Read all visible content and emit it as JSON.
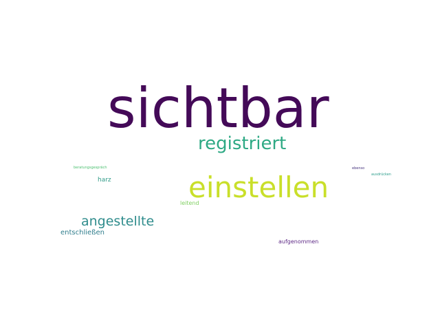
{
  "words": [
    {
      "text": "sichtbar",
      "color": "#440a58"
    },
    {
      "text": "registriert",
      "color": "#2ea984"
    },
    {
      "text": "einstellen",
      "color": "#c9df2a"
    },
    {
      "text": "angestellte",
      "color": "#2f8c8c"
    },
    {
      "text": "entschließen",
      "color": "#2f7d8c"
    },
    {
      "text": "harz",
      "color": "#2f9b88"
    },
    {
      "text": "leitend",
      "color": "#7fcf60"
    },
    {
      "text": "aufgenommen",
      "color": "#5e2a86"
    },
    {
      "text": "beratungsgespräch",
      "color": "#4cc070"
    },
    {
      "text": "ebenso",
      "color": "#46337e"
    },
    {
      "text": "ausdrücken",
      "color": "#2a9c8a"
    }
  ]
}
